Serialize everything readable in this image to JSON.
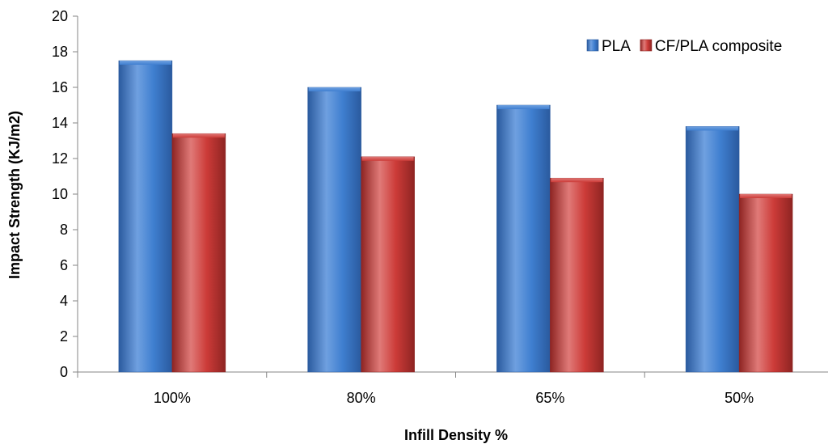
{
  "chart_data": {
    "type": "bar",
    "title": "",
    "xlabel": "Infill Density %",
    "ylabel": "Impact Strength (KJ/m2)",
    "categories": [
      "100%",
      "80%",
      "65%",
      "50%"
    ],
    "ylim": [
      0,
      20
    ],
    "yticks": [
      "0",
      "2",
      "4",
      "6",
      "8",
      "10",
      "12",
      "14",
      "16",
      "18",
      "20"
    ],
    "series": [
      {
        "name": "PLA",
        "values": [
          17.5,
          16.0,
          15.0,
          13.8
        ]
      },
      {
        "name": "CF/PLA composite",
        "values": [
          13.4,
          12.1,
          10.9,
          10.0
        ]
      }
    ],
    "legend_position": "top-right",
    "grid": false,
    "colors": {
      "PLA": {
        "light": "#6fa0e0",
        "mid": "#3f7fd0",
        "dark": "#2a5a9e"
      },
      "CF/PLA composite": {
        "light": "#e07a78",
        "mid": "#cc3b38",
        "dark": "#8e2422"
      }
    }
  }
}
